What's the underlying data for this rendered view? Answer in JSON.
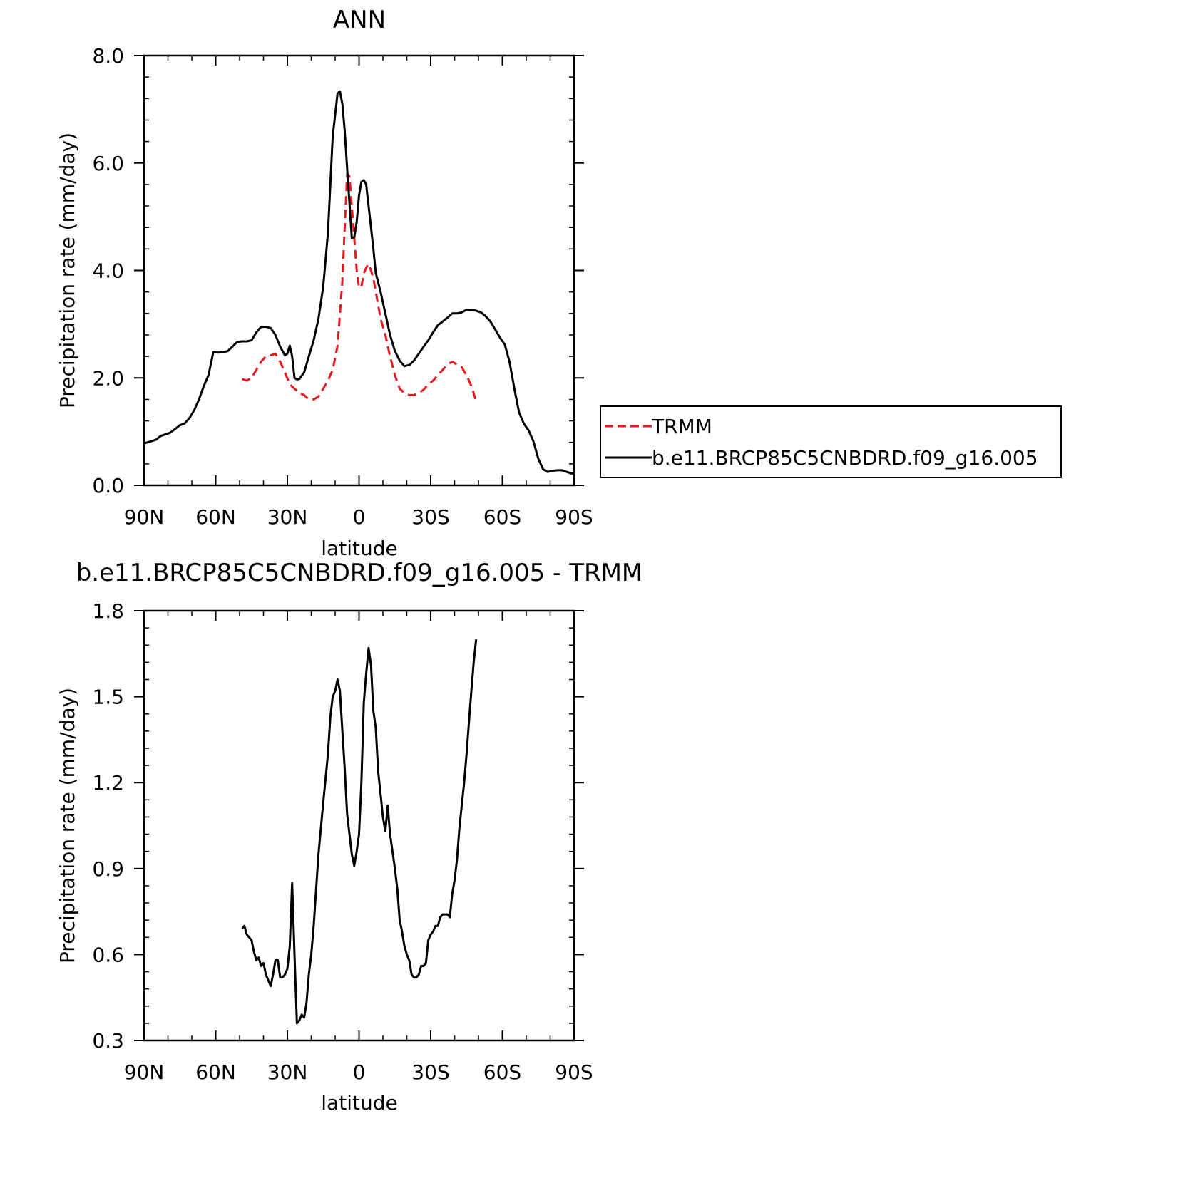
{
  "chart_data": [
    {
      "type": "line",
      "title": "ANN",
      "xlabel": "latitude",
      "ylabel": "Precipitation rate (mm/day)",
      "xlim": [
        90,
        -90
      ],
      "ylim": [
        0.0,
        8.0
      ],
      "x_ticks": [
        90,
        60,
        30,
        0,
        -30,
        -60,
        -90
      ],
      "x_tick_labels": [
        "90N",
        "60N",
        "30N",
        "0",
        "30S",
        "60S",
        "90S"
      ],
      "y_ticks": [
        0.0,
        2.0,
        4.0,
        6.0,
        8.0
      ],
      "y_tick_labels": [
        "0.0",
        "2.0",
        "4.0",
        "6.0",
        "8.0"
      ],
      "legend_position": "right",
      "series": [
        {
          "name": "TRMM",
          "color": "#e8191e",
          "dash": true,
          "x": [
            49,
            47,
            45,
            43,
            41,
            39,
            37,
            35,
            33,
            31,
            29,
            27,
            25,
            23,
            21,
            19,
            17,
            15,
            13,
            11,
            9,
            7,
            6,
            5,
            4,
            3,
            2,
            1,
            0,
            -1,
            -2,
            -3,
            -4,
            -5,
            -6,
            -7,
            -9,
            -11,
            -13,
            -15,
            -17,
            -19,
            -21,
            -23,
            -25,
            -27,
            -29,
            -31,
            -33,
            -35,
            -37,
            -39,
            -41,
            -43,
            -45,
            -47,
            -49
          ],
          "y": [
            1.98,
            1.95,
            2.0,
            2.15,
            2.3,
            2.4,
            2.42,
            2.45,
            2.3,
            2.1,
            1.88,
            1.8,
            1.72,
            1.68,
            1.6,
            1.6,
            1.65,
            1.8,
            1.95,
            2.15,
            2.6,
            3.8,
            4.8,
            5.8,
            5.75,
            5.2,
            4.6,
            4.0,
            3.68,
            3.7,
            3.95,
            4.05,
            4.12,
            4.0,
            3.85,
            3.6,
            3.1,
            2.8,
            2.4,
            2.05,
            1.8,
            1.72,
            1.68,
            1.68,
            1.72,
            1.78,
            1.88,
            1.95,
            2.05,
            2.15,
            2.25,
            2.3,
            2.25,
            2.2,
            2.05,
            1.85,
            1.57
          ]
        },
        {
          "name": "b.e11.BRCP85C5CNBDRD.f09_g16.005",
          "color": "#000000",
          "dash": false,
          "x": [
            90,
            87,
            85,
            83,
            81,
            79,
            77,
            75,
            73,
            71,
            69,
            67,
            65,
            63,
            61,
            59,
            57,
            55,
            53,
            51,
            49,
            47,
            45,
            43,
            41,
            39,
            37,
            35,
            33,
            31,
            30,
            29,
            28,
            27,
            26,
            25,
            23,
            21,
            19,
            17,
            15,
            13,
            11,
            9,
            8,
            7,
            6,
            5,
            4,
            3,
            2,
            1,
            0,
            -1,
            -2,
            -3,
            -4,
            -5,
            -6,
            -7,
            -9,
            -11,
            -13,
            -15,
            -17,
            -19,
            -21,
            -23,
            -25,
            -27,
            -29,
            -31,
            -33,
            -35,
            -37,
            -39,
            -41,
            -43,
            -45,
            -47,
            -49,
            -51,
            -53,
            -55,
            -57,
            -59,
            -61,
            -63,
            -65,
            -67,
            -69,
            -71,
            -73,
            -75,
            -77,
            -79,
            -81,
            -83,
            -85,
            -87,
            -89,
            -90
          ],
          "y": [
            0.78,
            0.82,
            0.85,
            0.92,
            0.95,
            0.98,
            1.05,
            1.12,
            1.15,
            1.25,
            1.4,
            1.6,
            1.85,
            2.05,
            2.48,
            2.47,
            2.48,
            2.5,
            2.58,
            2.67,
            2.68,
            2.68,
            2.7,
            2.85,
            2.95,
            2.95,
            2.93,
            2.8,
            2.58,
            2.42,
            2.45,
            2.6,
            2.4,
            2.0,
            1.97,
            1.98,
            2.1,
            2.4,
            2.7,
            3.1,
            3.7,
            4.7,
            6.5,
            7.3,
            7.33,
            7.1,
            6.6,
            5.9,
            5.25,
            4.6,
            4.62,
            4.9,
            5.4,
            5.65,
            5.68,
            5.6,
            5.2,
            4.8,
            4.4,
            3.95,
            3.6,
            3.2,
            2.8,
            2.5,
            2.32,
            2.22,
            2.24,
            2.32,
            2.45,
            2.58,
            2.7,
            2.85,
            2.98,
            3.05,
            3.12,
            3.2,
            3.2,
            3.22,
            3.27,
            3.27,
            3.25,
            3.22,
            3.15,
            3.05,
            2.9,
            2.75,
            2.62,
            2.3,
            1.8,
            1.35,
            1.15,
            1.02,
            0.82,
            0.5,
            0.3,
            0.25,
            0.27,
            0.28,
            0.28,
            0.25,
            0.22,
            0.22
          ]
        }
      ]
    },
    {
      "type": "line",
      "title": "b.e11.BRCP85C5CNBDRD.f09_g16.005 - TRMM",
      "xlabel": "latitude",
      "ylabel": "Precipitation rate (mm/day)",
      "xlim": [
        90,
        -90
      ],
      "ylim": [
        0.3,
        1.8
      ],
      "x_ticks": [
        90,
        60,
        30,
        0,
        -30,
        -60,
        -90
      ],
      "x_tick_labels": [
        "90N",
        "60N",
        "30N",
        "0",
        "30S",
        "60S",
        "90S"
      ],
      "y_ticks": [
        0.3,
        0.6,
        0.9,
        1.2,
        1.5,
        1.8
      ],
      "y_tick_labels": [
        "0.3",
        "0.6",
        "0.9",
        "1.2",
        "1.5",
        "1.8"
      ],
      "series": [
        {
          "color": "#000000",
          "x": [
            49,
            48,
            47,
            46,
            45,
            44,
            43,
            42,
            41,
            40,
            39,
            38,
            37,
            36,
            35,
            34,
            33,
            32,
            31,
            30,
            29,
            28,
            27,
            26,
            25,
            24,
            23,
            22,
            21,
            20,
            19,
            17,
            15,
            13,
            12,
            11,
            10,
            9,
            8,
            7,
            6,
            5,
            4,
            3,
            2,
            1,
            0,
            -1,
            -2,
            -3,
            -4,
            -5,
            -6,
            -7,
            -8,
            -9,
            -10,
            -11,
            -12,
            -13,
            -14,
            -15,
            -16,
            -17,
            -18,
            -19,
            -20,
            -21,
            -22,
            -23,
            -24,
            -25,
            -26,
            -27,
            -28,
            -29,
            -30,
            -31,
            -32,
            -33,
            -34,
            -35,
            -36,
            -37,
            -38,
            -39,
            -40,
            -41,
            -42,
            -43,
            -44,
            -45,
            -46,
            -47,
            -48,
            -49
          ],
          "y": [
            0.69,
            0.7,
            0.67,
            0.66,
            0.65,
            0.61,
            0.58,
            0.59,
            0.56,
            0.57,
            0.53,
            0.51,
            0.49,
            0.53,
            0.58,
            0.58,
            0.52,
            0.52,
            0.53,
            0.55,
            0.63,
            0.85,
            0.6,
            0.36,
            0.37,
            0.39,
            0.38,
            0.43,
            0.53,
            0.6,
            0.7,
            0.95,
            1.13,
            1.3,
            1.43,
            1.5,
            1.52,
            1.56,
            1.52,
            1.38,
            1.25,
            1.09,
            1.02,
            0.95,
            0.91,
            0.96,
            1.02,
            1.2,
            1.48,
            1.58,
            1.67,
            1.61,
            1.45,
            1.39,
            1.24,
            1.16,
            1.08,
            1.03,
            1.12,
            1.02,
            0.96,
            0.9,
            0.83,
            0.72,
            0.68,
            0.63,
            0.6,
            0.58,
            0.53,
            0.52,
            0.52,
            0.53,
            0.56,
            0.56,
            0.57,
            0.65,
            0.67,
            0.68,
            0.7,
            0.7,
            0.73,
            0.74,
            0.74,
            0.74,
            0.73,
            0.81,
            0.86,
            0.93,
            1.04,
            1.12,
            1.2,
            1.3,
            1.41,
            1.52,
            1.62,
            1.7
          ]
        }
      ]
    }
  ]
}
